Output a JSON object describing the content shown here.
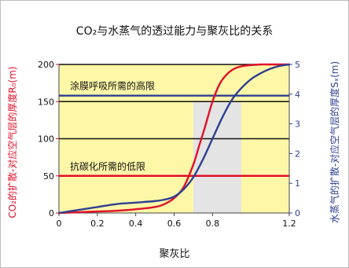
{
  "chart_data": {
    "type": "line",
    "title": "CO₂与水蒸气的透过能力与聚灰比的关系",
    "xlabel": "聚灰比",
    "ylabel_left": "CO₂的扩散-对应空气层的厚度R₀(m)",
    "ylabel_right": "水蒸气的扩散-对应空气层的厚度Sₓ(m)",
    "xlim": [
      0,
      1.2
    ],
    "ylim_left": [
      0,
      200
    ],
    "ylim_right": [
      0,
      5
    ],
    "x_ticks": [
      "0",
      "0.2",
      "0.4",
      "0.6",
      "0.8",
      "1.2"
    ],
    "x_tick_values": [
      0,
      0.2,
      0.4,
      0.6,
      0.8,
      1.2
    ],
    "y_left_ticks": [
      "0",
      "50",
      "100",
      "150",
      "200"
    ],
    "y_left_tick_values": [
      0,
      50,
      100,
      150,
      200
    ],
    "y_right_ticks": [
      "0",
      "1",
      "2",
      "3",
      "4",
      "5"
    ],
    "y_right_tick_values": [
      0,
      1,
      2,
      3,
      4,
      5
    ],
    "grid": "horizontal",
    "shaded_band": {
      "x_from": 0.7,
      "x_to": 0.95,
      "y_to": 150
    },
    "reference_lines": [
      {
        "label": "涂膜呼吸所需的高限",
        "y": 158,
        "axis": "left",
        "color": "#2e3f91"
      },
      {
        "label": "抗碳化所需的低限",
        "y": 50,
        "axis": "left",
        "color": "#e0102a"
      }
    ],
    "series": [
      {
        "axis": "left",
        "color": "#e0102a",
        "x": [
          0,
          0.1,
          0.2,
          0.3,
          0.4,
          0.5,
          0.55,
          0.6,
          0.65,
          0.7,
          0.73,
          0.76,
          0.8,
          0.84,
          0.88,
          0.92,
          0.96,
          1.0,
          1.05,
          1.1,
          1.2
        ],
        "y": [
          0,
          1,
          2,
          3,
          5,
          8,
          12,
          20,
          35,
          65,
          90,
          115,
          150,
          175,
          188,
          195,
          198,
          199,
          200,
          200,
          200
        ]
      },
      {
        "axis": "right",
        "color": "#2e3f91",
        "x": [
          0,
          0.1,
          0.2,
          0.3,
          0.4,
          0.5,
          0.55,
          0.6,
          0.65,
          0.7,
          0.75,
          0.8,
          0.85,
          0.9,
          0.95,
          1.0,
          1.05,
          1.1,
          1.15,
          1.2
        ],
        "y": [
          0,
          0.1,
          0.2,
          0.3,
          0.35,
          0.4,
          0.45,
          0.55,
          0.8,
          1.2,
          1.8,
          2.5,
          3.2,
          3.8,
          4.2,
          4.5,
          4.7,
          4.85,
          4.95,
          5
        ]
      }
    ]
  },
  "colors": {
    "plot_background": "#fff7a8",
    "red": "#e0102a",
    "blue": "#2e3f91",
    "band": "#e4e4e4"
  }
}
